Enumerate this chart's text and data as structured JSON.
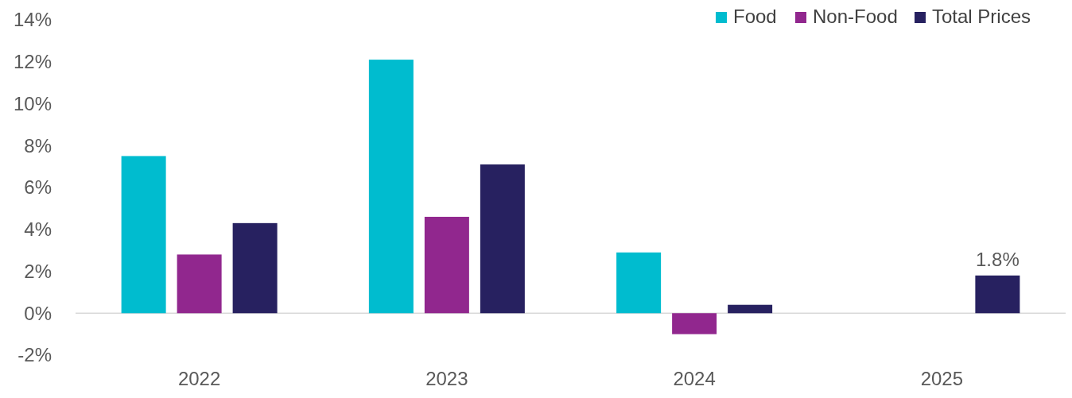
{
  "chart_data": {
    "type": "bar",
    "categories": [
      "2022",
      "2023",
      "2024",
      "2025"
    ],
    "series": [
      {
        "name": "Food",
        "color": "#00bccf",
        "values": [
          7.5,
          12.1,
          2.9,
          null
        ]
      },
      {
        "name": "Non-Food",
        "color": "#91278e",
        "values": [
          2.8,
          4.6,
          -1.0,
          null
        ]
      },
      {
        "name": "Total Prices",
        "color": "#272160",
        "values": [
          4.3,
          7.1,
          0.4,
          1.8
        ],
        "value_labels": [
          null,
          null,
          null,
          "1.8%"
        ]
      }
    ],
    "ylim": [
      -2,
      14
    ],
    "yticks": [
      {
        "value": -2,
        "label": "-2%"
      },
      {
        "value": 0,
        "label": "0%"
      },
      {
        "value": 2,
        "label": "2%"
      },
      {
        "value": 4,
        "label": "4%"
      },
      {
        "value": 6,
        "label": "6%"
      },
      {
        "value": 8,
        "label": "8%"
      },
      {
        "value": 10,
        "label": "10%"
      },
      {
        "value": 12,
        "label": "12%"
      },
      {
        "value": 14,
        "label": "14%"
      }
    ],
    "legend": "top right"
  }
}
